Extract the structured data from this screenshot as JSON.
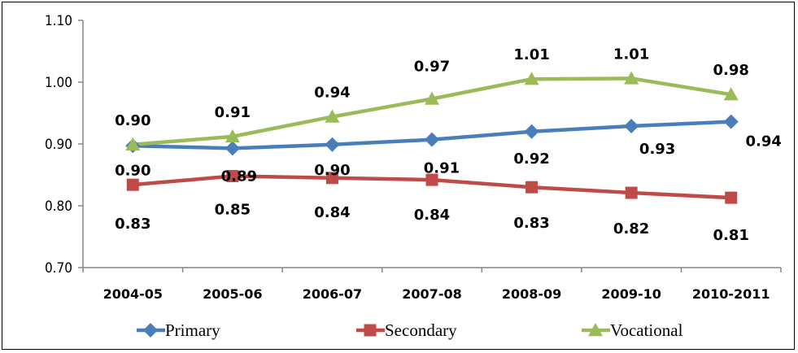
{
  "chart_data": {
    "type": "line",
    "categories": [
      "2004-05",
      "2005-06",
      "2006-07",
      "2007-08",
      "2008-09",
      "2009-10",
      "2010-2011"
    ],
    "ylim": [
      0.7,
      1.1
    ],
    "yticks": [
      "0.70",
      "0.80",
      "0.90",
      "1.00",
      "1.10"
    ],
    "grid": false,
    "legend_position": "bottom",
    "series": [
      {
        "name": "Primary",
        "color": "#4a7ebb",
        "marker": "diamond",
        "values": [
          0.897,
          0.893,
          0.899,
          0.907,
          0.92,
          0.929,
          0.936
        ],
        "labels": [
          "0.90",
          "0.89",
          "0.90",
          "0.91",
          "0.92",
          "0.93",
          "0.94"
        ]
      },
      {
        "name": "Secondary",
        "color": "#be4b48",
        "marker": "square",
        "values": [
          0.834,
          0.848,
          0.845,
          0.842,
          0.83,
          0.821,
          0.813
        ],
        "labels": [
          "0.83",
          "0.85",
          "0.84",
          "0.84",
          "0.83",
          "0.82",
          "0.81"
        ]
      },
      {
        "name": "Vocational",
        "color": "#9bbb59",
        "marker": "triangle",
        "values": [
          0.899,
          0.912,
          0.944,
          0.973,
          1.005,
          1.006,
          0.98
        ],
        "labels": [
          "0.90",
          "0.91",
          "0.94",
          "0.97",
          "1.01",
          "1.01",
          "0.98"
        ]
      }
    ]
  }
}
